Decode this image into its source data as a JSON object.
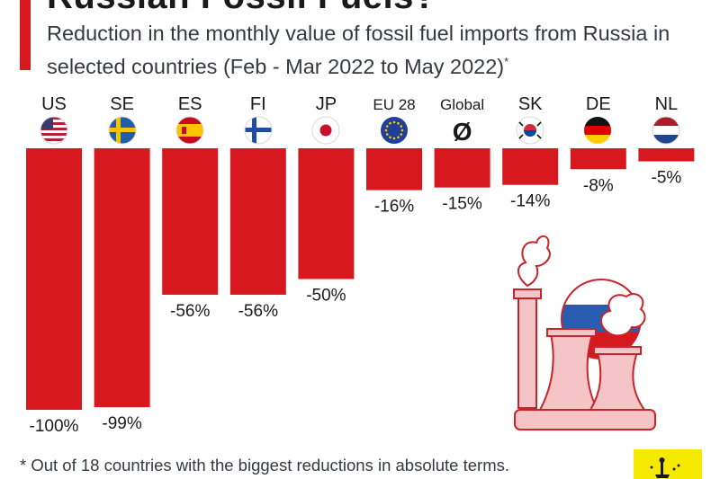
{
  "header": {
    "title": "Russian Fossil Fuels?",
    "subtitle": "Reduction in the monthly value of fossil fuel imports from Russia in selected countries (Feb - Mar 2022 to May 2022)",
    "subtitle_mark": "*"
  },
  "footnote": "* Out of 18 countries with the biggest reductions in absolute terms.",
  "colors": {
    "bar": "#d7191f",
    "accent": "#d7191f",
    "illustration": "#f5c4c6",
    "illustration_stroke": "#c9232b",
    "logo": "#f6e900"
  },
  "chart_data": {
    "type": "bar",
    "title": "",
    "categories": [
      "US",
      "SE",
      "ES",
      "FI",
      "JP",
      "EU 28",
      "Global",
      "SK",
      "DE",
      "NL"
    ],
    "flag_icons": [
      "us-flag-icon",
      "sweden-flag-icon",
      "spain-flag-icon",
      "finland-flag-icon",
      "japan-flag-icon",
      "eu-flag-icon",
      "global-average-icon",
      "south-korea-flag-icon",
      "germany-flag-icon",
      "netherlands-flag-icon"
    ],
    "global_symbol": "Ø",
    "values": [
      -100,
      -99,
      -56,
      -56,
      -50,
      -16,
      -15,
      -14,
      -8,
      -5
    ],
    "value_labels": [
      "-100%",
      "-99%",
      "-56%",
      "-56%",
      "-50%",
      "-16%",
      "-15%",
      "-14%",
      "-8%",
      "-5%"
    ],
    "unit": "%",
    "ylim": [
      -100,
      0
    ],
    "grid": false,
    "legend": "none"
  }
}
